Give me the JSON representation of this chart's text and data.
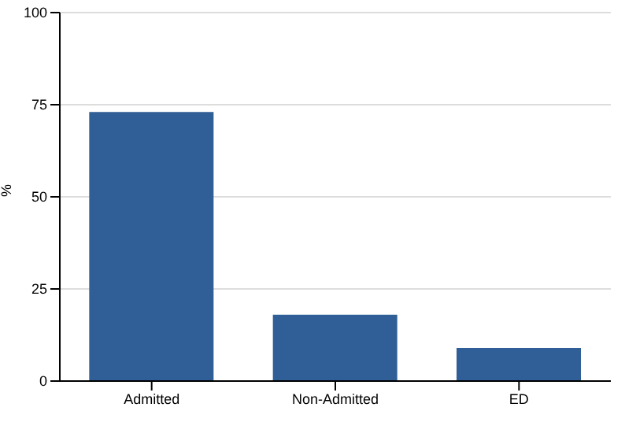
{
  "chart_data": {
    "type": "bar",
    "ylabel": "%",
    "categories": [
      "Admitted",
      "Non-Admitted",
      "ED"
    ],
    "values": [
      73,
      18,
      9
    ],
    "color": "#2f5f96",
    "ylim": [
      0,
      100
    ],
    "yticks": [
      0,
      25,
      50,
      75,
      100
    ],
    "grid": "y"
  }
}
